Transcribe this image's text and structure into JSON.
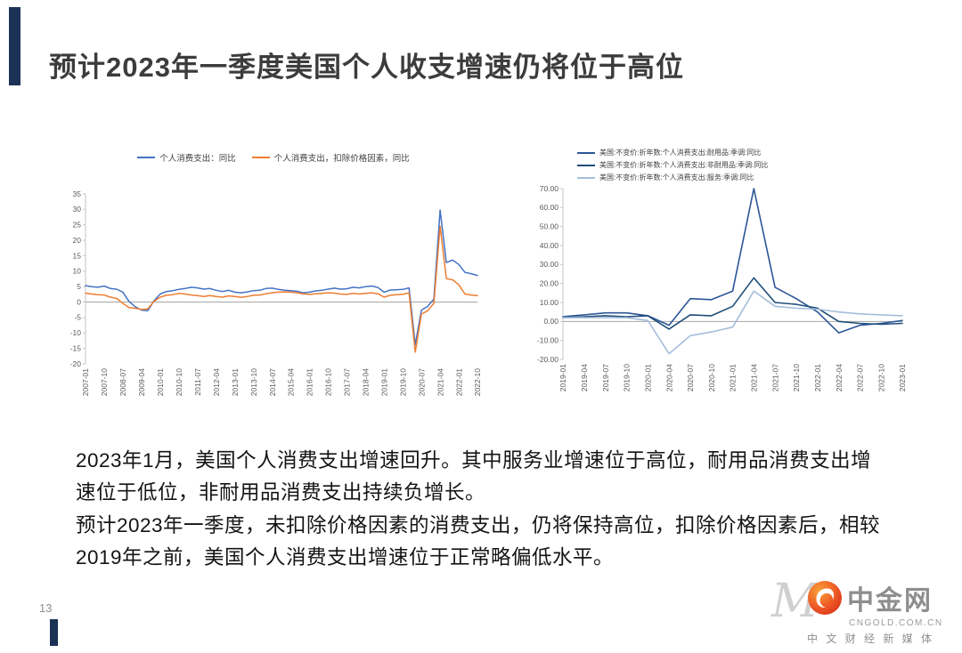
{
  "page": {
    "title": "预计2023年一季度美国个人收支增速仍将位于高位",
    "page_number": "13"
  },
  "chart_data": [
    {
      "type": "line",
      "legend_position": "top-center",
      "grid": false,
      "ylim": [
        -20,
        35
      ],
      "yticks": [
        35,
        30,
        25,
        20,
        15,
        10,
        5,
        0,
        -5,
        -10,
        -15,
        -20
      ],
      "ytick_decimals": 0,
      "x_tick_every": 3,
      "categories": [
        "2007-01",
        "2007-04",
        "2007-07",
        "2007-10",
        "2008-01",
        "2008-04",
        "2008-07",
        "2008-10",
        "2009-01",
        "2009-04",
        "2009-07",
        "2009-10",
        "2010-01",
        "2010-04",
        "2010-07",
        "2010-10",
        "2011-01",
        "2011-04",
        "2011-07",
        "2011-10",
        "2012-01",
        "2012-04",
        "2012-07",
        "2012-10",
        "2013-01",
        "2013-04",
        "2013-07",
        "2013-10",
        "2014-01",
        "2014-04",
        "2014-07",
        "2014-10",
        "2015-01",
        "2015-04",
        "2015-07",
        "2015-10",
        "2016-01",
        "2016-04",
        "2016-07",
        "2016-10",
        "2017-01",
        "2017-04",
        "2017-07",
        "2017-10",
        "2018-01",
        "2018-04",
        "2018-07",
        "2018-10",
        "2019-01",
        "2019-04",
        "2019-07",
        "2019-10",
        "2020-01",
        "2020-04",
        "2020-07",
        "2020-10",
        "2021-01",
        "2021-04",
        "2021-07",
        "2021-10",
        "2022-01",
        "2022-04",
        "2022-07",
        "2022-10"
      ],
      "series": [
        {
          "name": "个人消费支出：同比",
          "color": "#4472c4",
          "values": [
            5.3,
            5.0,
            4.8,
            5.2,
            4.4,
            4.2,
            3.2,
            0.2,
            -1.5,
            -2.6,
            -2.8,
            0.4,
            2.6,
            3.4,
            3.7,
            4.1,
            4.4,
            4.8,
            4.6,
            4.2,
            4.4,
            3.8,
            3.4,
            3.8,
            3.2,
            3.0,
            3.3,
            3.7,
            3.8,
            4.4,
            4.5,
            4.1,
            3.8,
            3.7,
            3.5,
            3.0,
            3.2,
            3.6,
            3.8,
            4.2,
            4.5,
            4.2,
            4.3,
            4.8,
            4.6,
            5.0,
            5.2,
            4.7,
            3.2,
            3.9,
            4.0,
            4.1,
            4.6,
            -13.8,
            -2.6,
            -1.4,
            1.0,
            29.8,
            12.8,
            13.6,
            12.2,
            9.6,
            9.2,
            8.6
          ]
        },
        {
          "name": "个人消费支出，扣除价格因素，同比",
          "color": "#ed7d31",
          "values": [
            2.9,
            2.6,
            2.4,
            2.3,
            1.6,
            1.2,
            -0.4,
            -1.8,
            -2.0,
            -2.4,
            -2.2,
            0.2,
            1.6,
            2.2,
            2.4,
            2.8,
            2.6,
            2.3,
            2.1,
            1.8,
            2.1,
            1.8,
            1.6,
            2.0,
            1.8,
            1.5,
            1.8,
            2.2,
            2.3,
            2.7,
            3.0,
            3.2,
            3.3,
            3.2,
            3.0,
            2.7,
            2.5,
            2.7,
            2.8,
            3.0,
            2.9,
            2.6,
            2.5,
            2.8,
            2.6,
            2.8,
            3.0,
            2.7,
            1.6,
            2.2,
            2.4,
            2.5,
            3.0,
            -16.2,
            -3.9,
            -2.8,
            -0.4,
            24.6,
            7.6,
            7.2,
            5.6,
            2.6,
            2.3,
            2.1
          ]
        }
      ]
    },
    {
      "type": "line",
      "legend_position": "top-left",
      "grid": false,
      "ylim": [
        -20,
        70
      ],
      "yticks": [
        70,
        60,
        50,
        40,
        30,
        20,
        10,
        0,
        -10,
        -20
      ],
      "ytick_decimals": 2,
      "x_tick_every": 1,
      "categories": [
        "2019-01",
        "2019-04",
        "2019-07",
        "2019-10",
        "2020-01",
        "2020-04",
        "2020-07",
        "2020-10",
        "2021-01",
        "2021-04",
        "2021-07",
        "2021-10",
        "2022-01",
        "2022-04",
        "2022-07",
        "2022-10",
        "2023-01"
      ],
      "series": [
        {
          "name": "美国:不变价:折年数:个人消费支出:耐用品:季调:同比",
          "color": "#2c5697",
          "values": [
            2.5,
            3.5,
            4.5,
            4.5,
            3.0,
            -2.0,
            12.0,
            11.5,
            16.0,
            70.0,
            18.0,
            12.0,
            5.0,
            -6.0,
            -2.0,
            -1.0,
            0.5
          ]
        },
        {
          "name": "美国:不变价:折年数:个人消费支出:非耐用品:季调:同比",
          "color": "#1f4e79",
          "values": [
            2.0,
            2.5,
            3.0,
            2.5,
            3.0,
            -4.0,
            3.5,
            3.0,
            8.0,
            23.0,
            10.0,
            9.0,
            7.0,
            0.0,
            -1.0,
            -1.5,
            -1.0
          ]
        },
        {
          "name": "美国:不变价:折年数:个人消费支出:服务:季调:同比",
          "color": "#a6bddb",
          "values": [
            2.0,
            2.0,
            2.0,
            2.0,
            0.5,
            -17.0,
            -7.5,
            -5.5,
            -3.0,
            16.0,
            8.0,
            7.0,
            6.5,
            5.0,
            4.0,
            3.5,
            3.0
          ]
        }
      ]
    }
  ],
  "body": {
    "paragraph1": "2023年1月，美国个人消费支出增速回升。其中服务业增速位于高位，耐用品消费支出增速位于低位，非耐用品消费支出持续负增长。",
    "paragraph2": "预计2023年一季度，未扣除价格因素的消费支出，仍将保持高位，扣除价格因素后，相较2019年之前，美国个人消费支出增速位于正常略偏低水平。"
  },
  "footer": {
    "watermark": "M",
    "brand": "中金网",
    "domain": "CNGOLD.COM.CN",
    "tagline": "中 文 财 经 新 媒 体"
  }
}
